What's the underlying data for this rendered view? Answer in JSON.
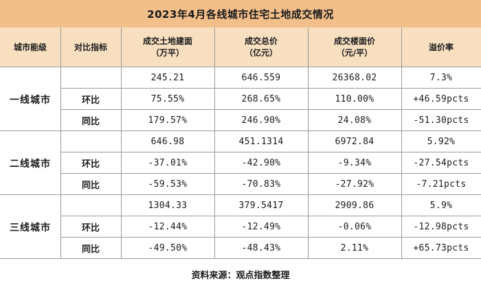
{
  "title": "2023年4月各线城市住宅土地成交情况",
  "headers": {
    "tier": "城市能级",
    "metric": "对比指标",
    "area": [
      "成交土地建面",
      "（万平）"
    ],
    "total": [
      "成交总价",
      "（亿元）"
    ],
    "floor_price": [
      "成交楼面价",
      "（元/平）"
    ],
    "premium": "溢价率"
  },
  "groups": [
    {
      "tier": "一线城市",
      "rows": [
        {
          "metric": "",
          "area": "245.21",
          "total": "646.559",
          "floor_price": "26368.02",
          "premium": "7.3%"
        },
        {
          "metric": "环比",
          "area": "75.55%",
          "total": "268.65%",
          "floor_price": "110.00%",
          "premium": "+46.59pcts"
        },
        {
          "metric": "同比",
          "area": "179.57%",
          "total": "246.90%",
          "floor_price": "24.08%",
          "premium": "-51.30pcts"
        }
      ]
    },
    {
      "tier": "二线城市",
      "rows": [
        {
          "metric": "",
          "area": "646.98",
          "total": "451.1314",
          "floor_price": "6972.84",
          "premium": "5.92%"
        },
        {
          "metric": "环比",
          "area": "-37.01%",
          "total": "-42.90%",
          "floor_price": "-9.34%",
          "premium": "-27.54pcts"
        },
        {
          "metric": "同比",
          "area": "-59.53%",
          "total": "-70.83%",
          "floor_price": "-27.92%",
          "premium": "-7.21pcts"
        }
      ]
    },
    {
      "tier": "三线城市",
      "rows": [
        {
          "metric": "",
          "area": "1304.33",
          "total": "379.5417",
          "floor_price": "2909.86",
          "premium": "5.9%"
        },
        {
          "metric": "环比",
          "area": "-12.44%",
          "total": "-12.49%",
          "floor_price": "-0.06%",
          "premium": "-12.98pcts"
        },
        {
          "metric": "同比",
          "area": "-49.50%",
          "total": "-48.43%",
          "floor_price": "2.11%",
          "premium": "+65.73pcts"
        }
      ]
    }
  ],
  "footer": "资料来源：观点指数整理",
  "colors": {
    "title_bg": "#f2be8a",
    "header_bg": "#f7dfc0",
    "grid": "#9a9a9a"
  }
}
